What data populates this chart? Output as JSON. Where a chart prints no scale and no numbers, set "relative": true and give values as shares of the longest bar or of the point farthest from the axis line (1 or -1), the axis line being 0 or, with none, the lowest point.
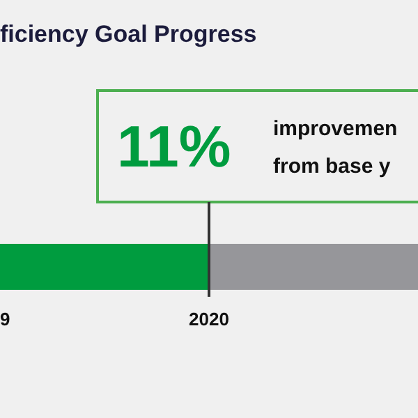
{
  "chart_data": {
    "type": "bar",
    "orientation": "horizontal",
    "stacked": true,
    "relative": true,
    "title": "ficiency Goal Progress",
    "categories": [
      null
    ],
    "series": [
      {
        "color": "#009c3f",
        "values": [
          0.5
        ]
      },
      {
        "color": "#96969a",
        "values": [
          0.5
        ]
      }
    ],
    "annotations": [
      "11%",
      "improvemen\nfrom base y",
      "9",
      "2020"
    ],
    "ref_lines": [
      {
        "axis": "x",
        "value": 0.5,
        "color": "#333333"
      }
    ],
    "legend": false
  }
}
